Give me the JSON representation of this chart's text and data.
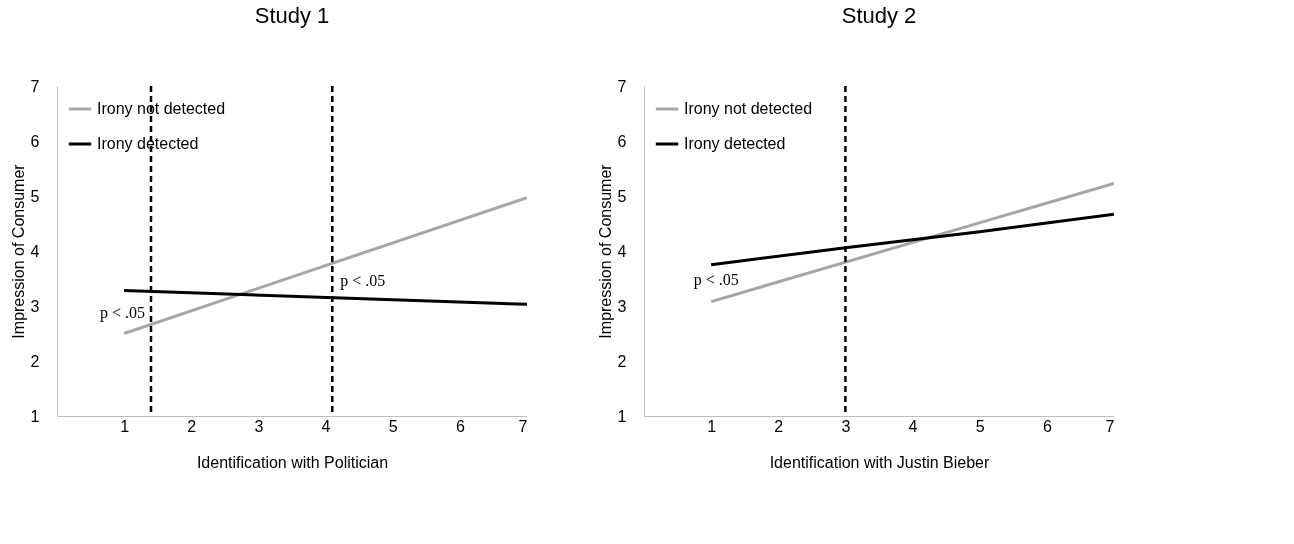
{
  "chart_data": [
    {
      "type": "line",
      "title": "Study 1",
      "xlabel": "Identification with Politician",
      "ylabel": "Impression of Consumer",
      "x": [
        1,
        7
      ],
      "series": [
        {
          "name": "Irony not detected",
          "color": "#a6a6a6",
          "values": [
            2.5,
            4.97
          ]
        },
        {
          "name": "Irony detected",
          "color": "#000000",
          "values": [
            3.28,
            3.03
          ]
        }
      ],
      "xlim": [
        0,
        7
      ],
      "ylim": [
        1,
        7
      ],
      "xticks": [
        1,
        2,
        3,
        4,
        5,
        6,
        7
      ],
      "yticks": [
        1,
        2,
        3,
        4,
        5,
        6,
        7
      ],
      "ref_lines": [
        {
          "axis": "x",
          "value": 1.4,
          "color": "#000000",
          "line_style": "dashed"
        },
        {
          "axis": "x",
          "value": 4.1,
          "color": "#000000",
          "line_style": "dashed"
        }
      ],
      "annotations": [
        {
          "text": "p < .05",
          "x": 1.4,
          "y": 2.66
        },
        {
          "text": "p < .05",
          "x": 4.1,
          "y": 3.78
        }
      ],
      "grid": false,
      "legend": "top left"
    },
    {
      "type": "line",
      "title": "Study 2",
      "xlabel": "Identification with Justin Bieber",
      "ylabel": "Impression of Consumer",
      "x": [
        1,
        3,
        5,
        7
      ],
      "series": [
        {
          "name": "Irony not detected",
          "color": "#a6a6a6",
          "x": [
            1,
            7
          ],
          "values": [
            3.08,
            5.23
          ]
        },
        {
          "name": "Irony detected",
          "color": "#000000",
          "values": [
            3.75,
            4.06,
            4.35,
            4.67
          ]
        }
      ],
      "xlim": [
        0,
        7
      ],
      "ylim": [
        1,
        7
      ],
      "xticks": [
        1,
        2,
        3,
        4,
        5,
        6,
        7
      ],
      "yticks": [
        1,
        2,
        3,
        4,
        5,
        6,
        7
      ],
      "ref_lines": [
        {
          "axis": "x",
          "value": 3,
          "color": "#000000",
          "line_style": "dashed"
        }
      ],
      "annotations": [
        {
          "text": "p < .05",
          "x": 1.5,
          "y": 3.26
        }
      ],
      "grid": false,
      "legend": "top left"
    }
  ]
}
